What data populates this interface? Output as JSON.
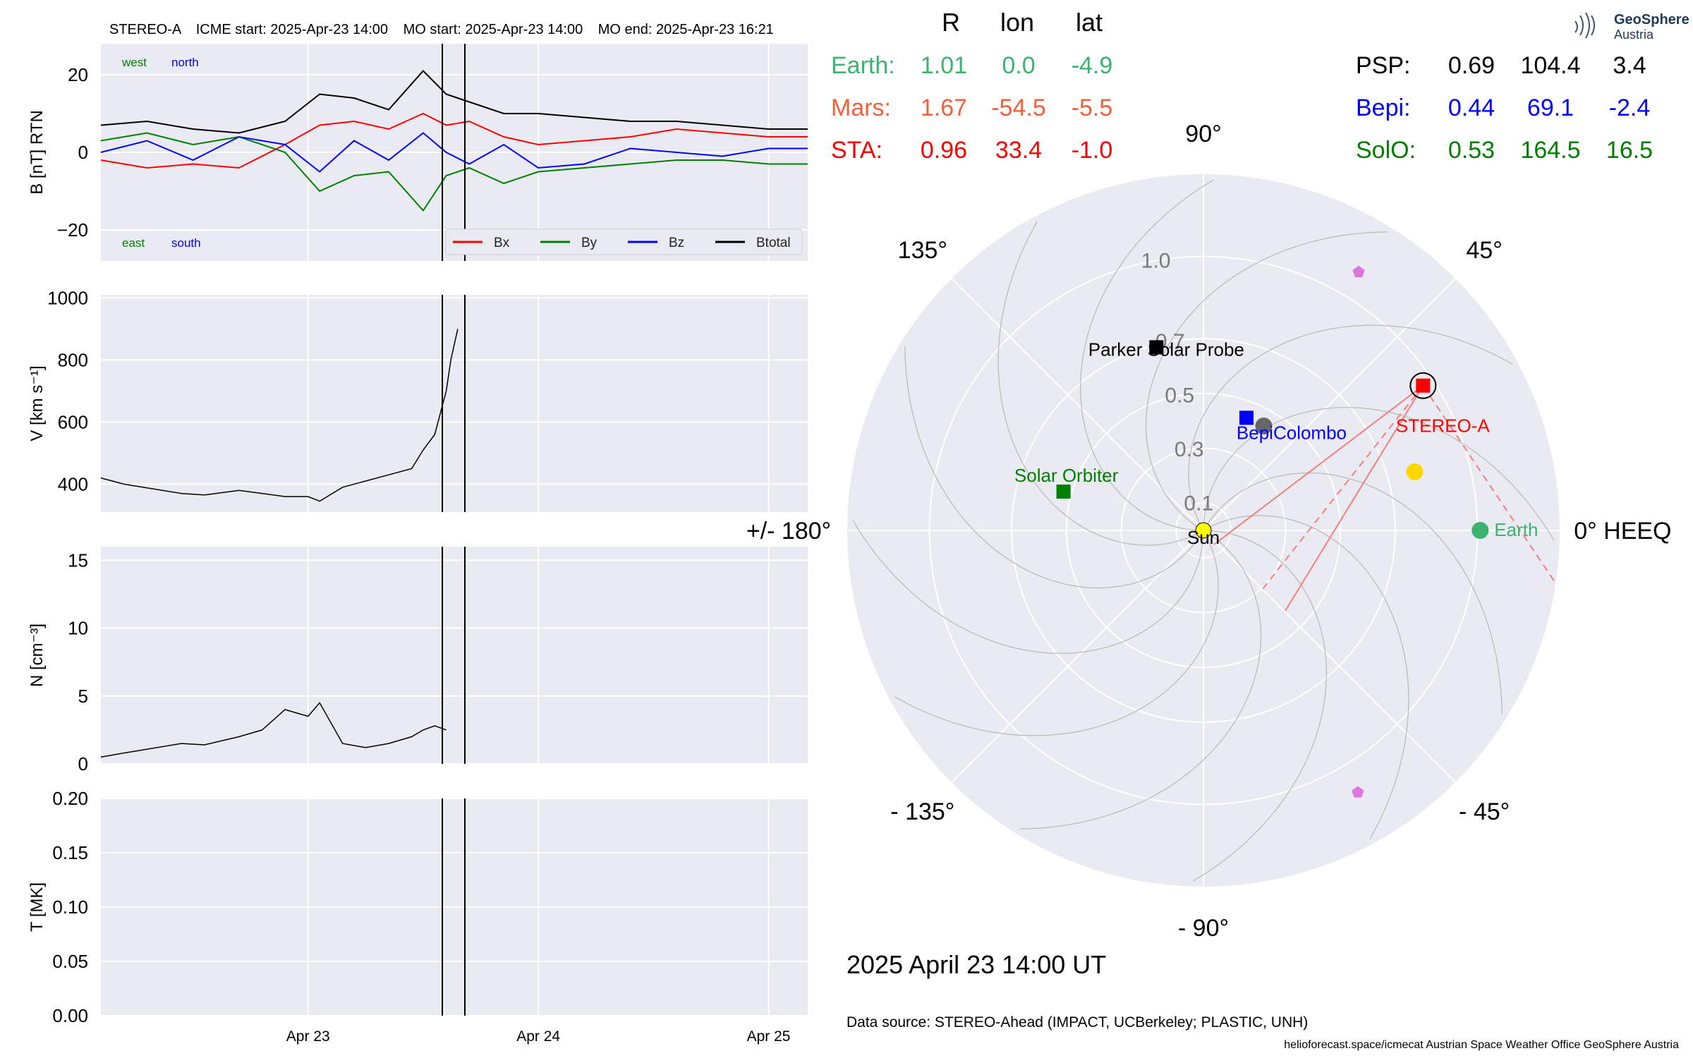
{
  "header": {
    "spacecraft": "STEREO-A",
    "icme_start": "ICME start: 2025-Apr-23 14:00",
    "mo_start": "MO start: 2025-Apr-23 14:00",
    "mo_end": "MO end: 2025-Apr-23 16:21"
  },
  "logo": {
    "line1": "GeoSphere",
    "line2": "Austria"
  },
  "positions_table": {
    "columns": [
      "R",
      "lon",
      "lat"
    ],
    "left_rows": [
      {
        "name": "Earth:",
        "r": "1.01",
        "lon": "0.0",
        "lat": "-4.9",
        "color": "#3cb371"
      },
      {
        "name": "Mars:",
        "r": "1.67",
        "lon": "-54.5",
        "lat": "-5.5",
        "color": "#f4603c"
      },
      {
        "name": "STA:",
        "r": "0.96",
        "lon": "33.4",
        "lat": "-1.0",
        "color": "#ff0000"
      }
    ],
    "right_rows": [
      {
        "name": "PSP:",
        "r": "0.69",
        "lon": "104.4",
        "lat": "3.4",
        "color": "#000000"
      },
      {
        "name": "Bepi:",
        "r": "0.44",
        "lon": "69.1",
        "lat": "-2.4",
        "color": "#0000ff"
      },
      {
        "name": "SolO:",
        "r": "0.53",
        "lon": "164.5",
        "lat": "16.5",
        "color": "#008000"
      }
    ]
  },
  "polar_plot": {
    "angle_labels": [
      {
        "text": "0° HEEQ",
        "deg": 0
      },
      {
        "text": "45°",
        "deg": 45
      },
      {
        "text": "90°",
        "deg": 90
      },
      {
        "text": "135°",
        "deg": 135
      },
      {
        "text": "+/- 180°",
        "deg": 180
      },
      {
        "text": "- 135°",
        "deg": -135
      },
      {
        "text": "- 90°",
        "deg": -90
      },
      {
        "text": "- 45°",
        "deg": -45
      }
    ],
    "radial_ticks": [
      "0.1",
      "0.3",
      "0.5",
      "0.7",
      "1.0"
    ],
    "radial_tick_values": [
      0.1,
      0.3,
      0.5,
      0.7,
      1.0
    ],
    "r_max": 1.3,
    "bodies": [
      {
        "label": "Sun",
        "r": 0.0,
        "lon": 0,
        "marker": "circle",
        "color": "#ffff00",
        "label_color": "#000000"
      },
      {
        "label": "Earth",
        "r": 1.01,
        "lon": 0.0,
        "marker": "circle",
        "color": "#3cb371",
        "label_color": "#3cb371"
      },
      {
        "label": "STEREO-A",
        "r": 0.96,
        "lon": 33.4,
        "marker": "square",
        "color": "#ff0000",
        "label_color": "#ff0000"
      },
      {
        "label": "BepiColombo",
        "r": 0.44,
        "lon": 69.1,
        "marker": "square",
        "color": "#0000ff",
        "label_color": "#0000ff"
      },
      {
        "label": "Parker Solar Probe",
        "r": 0.69,
        "lon": 104.4,
        "marker": "square",
        "color": "#000000",
        "label_color": "#000000"
      },
      {
        "label": "Solar Orbiter",
        "r": 0.53,
        "lon": 164.5,
        "marker": "square",
        "color": "#008000",
        "label_color": "#008000"
      }
    ],
    "extra_points": [
      {
        "r": 0.44,
        "lon": 60,
        "marker": "circle",
        "color": "#666666"
      },
      {
        "r": 0.8,
        "lon": 15.5,
        "marker": "circle",
        "color": "#ffd700"
      },
      {
        "r": 1.1,
        "lon": 59,
        "marker": "pentagon",
        "color": "#dd77dd"
      },
      {
        "r": 1.11,
        "lon": -59.5,
        "marker": "pentagon",
        "color": "#dd77dd"
      }
    ],
    "date_label": "2025 April 23  14:00 UT"
  },
  "footer": {
    "data_source": "Data source: STEREO-Ahead (IMPACT, UCBerkeley; PLASTIC, UNH)",
    "credits": "helioforecast.space/icmecat   Austrian Space Weather Office   GeoSphere Austria"
  },
  "chart_data": [
    {
      "type": "line",
      "panel": "magnetic_field",
      "ylabel": "B [nT] RTN",
      "ylim": [
        -28,
        28
      ],
      "yticks": [
        "20",
        "0",
        "−20"
      ],
      "ytick_values": [
        20,
        0,
        -20
      ],
      "corner_labels": {
        "west": "west",
        "north": "north",
        "east": "east",
        "south": "south"
      },
      "x_days_range": [
        22.1,
        25.17
      ],
      "series": [
        {
          "name": "Bx",
          "color": "#ff0000",
          "x": [
            22.1,
            22.3,
            22.5,
            22.7,
            22.9,
            23.05,
            23.2,
            23.35,
            23.5,
            23.6,
            23.7,
            23.85,
            24.0,
            24.2,
            24.4,
            24.6,
            24.8,
            25.0,
            25.17
          ],
          "y": [
            -2,
            -4,
            -3,
            -4,
            2,
            7,
            8,
            6,
            10,
            7,
            8,
            4,
            2,
            3,
            4,
            6,
            5,
            4,
            4
          ]
        },
        {
          "name": "By",
          "color": "#008000",
          "x": [
            22.1,
            22.3,
            22.5,
            22.7,
            22.9,
            23.05,
            23.2,
            23.35,
            23.5,
            23.6,
            23.7,
            23.85,
            24.0,
            24.2,
            24.4,
            24.6,
            24.8,
            25.0,
            25.17
          ],
          "y": [
            3,
            5,
            2,
            4,
            0,
            -10,
            -6,
            -5,
            -15,
            -6,
            -4,
            -8,
            -5,
            -4,
            -3,
            -2,
            -2,
            -3,
            -3
          ]
        },
        {
          "name": "Bz",
          "color": "#0000ff",
          "x": [
            22.1,
            22.3,
            22.5,
            22.7,
            22.9,
            23.05,
            23.2,
            23.35,
            23.5,
            23.6,
            23.7,
            23.85,
            24.0,
            24.2,
            24.4,
            24.6,
            24.8,
            25.0,
            25.17
          ],
          "y": [
            0,
            3,
            -2,
            4,
            2,
            -5,
            3,
            -2,
            5,
            0,
            -3,
            2,
            -4,
            -3,
            1,
            0,
            -1,
            1,
            1
          ]
        },
        {
          "name": "Btotal",
          "color": "#000000",
          "x": [
            22.1,
            22.3,
            22.5,
            22.7,
            22.9,
            23.05,
            23.2,
            23.35,
            23.5,
            23.6,
            23.7,
            23.85,
            24.0,
            24.2,
            24.4,
            24.6,
            24.8,
            25.0,
            25.17
          ],
          "y": [
            7,
            8,
            6,
            5,
            8,
            15,
            14,
            11,
            21,
            15,
            13,
            10,
            10,
            9,
            8,
            8,
            7,
            6,
            6
          ]
        }
      ]
    },
    {
      "type": "line",
      "panel": "speed",
      "ylabel": "V [km s⁻¹]",
      "ylim": [
        310,
        1010
      ],
      "yticks": [
        "1000",
        "800",
        "600",
        "400"
      ],
      "ytick_values": [
        1000,
        800,
        600,
        400
      ],
      "x_days_range": [
        22.1,
        25.17
      ],
      "x": [
        22.1,
        22.2,
        22.45,
        22.55,
        22.7,
        22.8,
        22.9,
        23.0,
        23.05,
        23.15,
        23.25,
        23.35,
        23.45,
        23.5,
        23.55,
        23.6,
        23.62,
        23.65
      ],
      "y": [
        420,
        400,
        370,
        365,
        380,
        370,
        360,
        360,
        345,
        390,
        410,
        430,
        450,
        510,
        560,
        700,
        800,
        900
      ]
    },
    {
      "type": "line",
      "panel": "density",
      "ylabel": "N [cm⁻³]",
      "ylim": [
        0,
        16
      ],
      "yticks": [
        "15",
        "10",
        "5",
        "0"
      ],
      "ytick_values": [
        15,
        10,
        5,
        0
      ],
      "x_days_range": [
        22.1,
        25.17
      ],
      "x": [
        22.1,
        22.2,
        22.45,
        22.55,
        22.7,
        22.8,
        22.9,
        23.0,
        23.05,
        23.15,
        23.25,
        23.35,
        23.45,
        23.5,
        23.55,
        23.6
      ],
      "y": [
        0.5,
        0.8,
        1.5,
        1.4,
        2,
        2.5,
        4,
        3.5,
        4.5,
        1.5,
        1.2,
        1.5,
        2,
        2.5,
        2.8,
        2.5
      ]
    },
    {
      "type": "line",
      "panel": "temperature",
      "ylabel": "T [MK]",
      "ylim": [
        0,
        0.2
      ],
      "yticks": [
        "0.20",
        "0.15",
        "0.10",
        "0.05",
        "0.00"
      ],
      "ytick_values": [
        0.2,
        0.15,
        0.1,
        0.05,
        0.0
      ],
      "xticks": [
        "Apr 23",
        "Apr 24",
        "Apr 25"
      ],
      "xtick_days": [
        23,
        24,
        25
      ],
      "x_days_range": [
        22.1,
        25.17
      ],
      "vertical_markers_days": [
        23.583,
        23.681
      ]
    }
  ]
}
